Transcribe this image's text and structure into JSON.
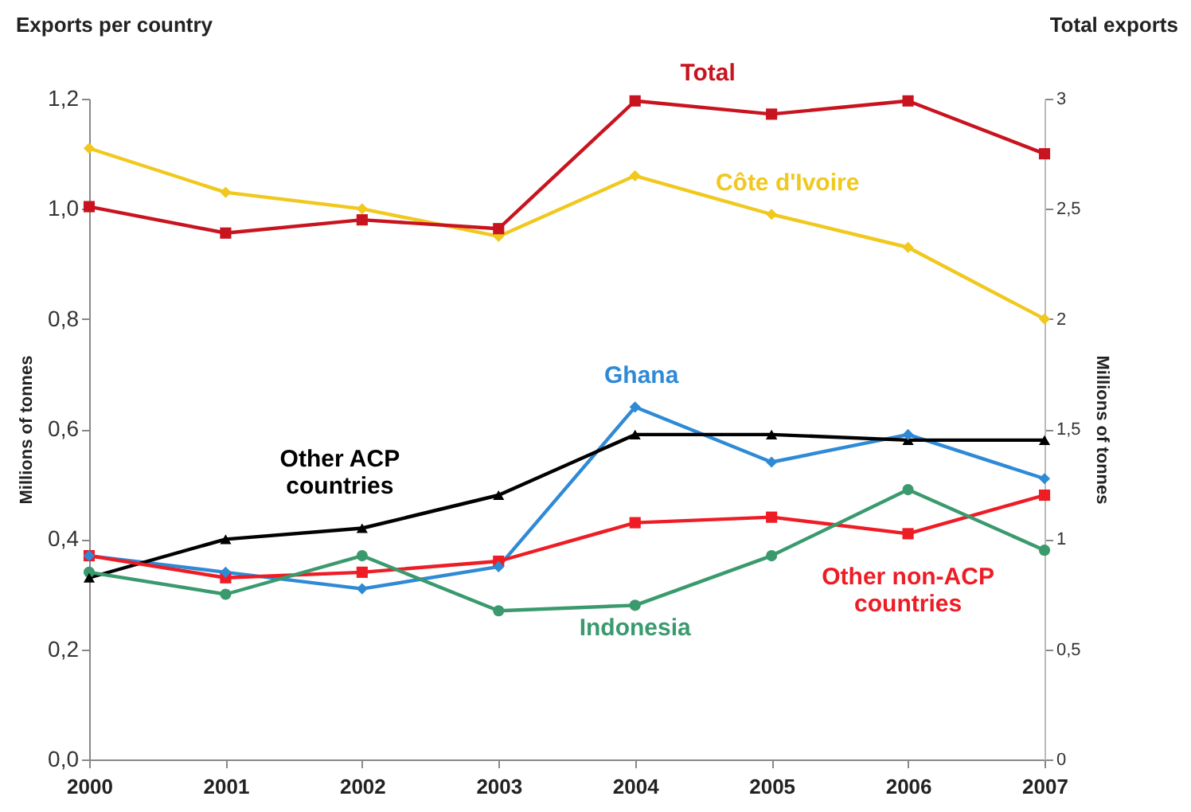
{
  "chart_data": {
    "type": "line",
    "categories": [
      "2000",
      "2001",
      "2002",
      "2003",
      "2004",
      "2005",
      "2006",
      "2007"
    ],
    "ylabel": "Millions of tonnes",
    "y2label": "Millions of tonnes",
    "annotations": [
      "Exports per country",
      "Total exports"
    ],
    "ylim": [
      0,
      1.2
    ],
    "yticks": [
      {
        "value": 0,
        "label": "0,0"
      },
      {
        "value": 0.2,
        "label": "0,2"
      },
      {
        "value": 0.4,
        "label": "0,4"
      },
      {
        "value": 0.6,
        "label": "0,6"
      },
      {
        "value": 0.8,
        "label": "0,8"
      },
      {
        "value": 1,
        "label": "1,0"
      },
      {
        "value": 1.2,
        "label": "1,2"
      }
    ],
    "y2lim": [
      0,
      3
    ],
    "y2ticks": [
      0,
      {
        "value": 0.5,
        "label": "0,5"
      },
      1,
      {
        "value": 1.5,
        "label": "1,5"
      },
      2,
      {
        "value": 2.5,
        "label": "2,5"
      },
      3
    ],
    "grid": false,
    "legend": false,
    "series": [
      {
        "name": "Total",
        "color": "#c8141e",
        "axis": "y2",
        "marker": "square",
        "values": [
          2.51,
          2.39,
          2.45,
          2.41,
          2.99,
          2.93,
          2.99,
          2.75
        ]
      },
      {
        "name": "Côte d'Ivoire",
        "color": "#f0c81e",
        "marker": "diamond",
        "values": [
          1.11,
          1.03,
          1.0,
          0.95,
          1.06,
          0.99,
          0.93,
          0.8
        ]
      },
      {
        "name": "Ghana",
        "color": "#2f8ad6",
        "marker": "diamond",
        "values": [
          0.37,
          0.34,
          0.31,
          0.35,
          0.64,
          0.54,
          0.59,
          0.51
        ]
      },
      {
        "name": "Other ACP countries",
        "color": "#000000",
        "marker": "triangle",
        "values": [
          0.33,
          0.4,
          0.42,
          0.48,
          0.59,
          0.59,
          0.58,
          0.58
        ]
      },
      {
        "name": "Other non-ACP countries",
        "color": "#ee1c24",
        "marker": "square",
        "values": [
          0.37,
          0.33,
          0.34,
          0.36,
          0.43,
          0.44,
          0.41,
          0.48
        ]
      },
      {
        "name": "Indonesia",
        "color": "#3a9a6e",
        "marker": "circle",
        "values": [
          0.34,
          0.3,
          0.37,
          0.27,
          0.28,
          0.37,
          0.49,
          0.38
        ]
      }
    ]
  }
}
